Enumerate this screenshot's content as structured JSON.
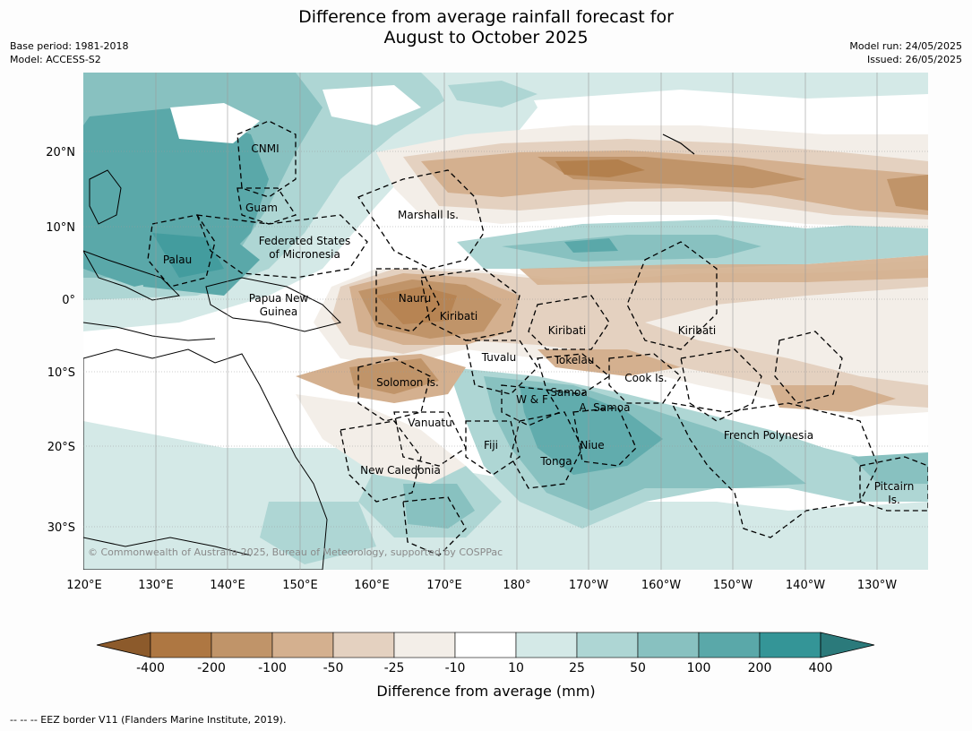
{
  "title_line1": "Difference from average rainfall forecast for",
  "title_line2": "August to October 2025",
  "meta_left": [
    "Base period: 1981-2018",
    "Model: ACCESS-S2"
  ],
  "meta_right": [
    "Model run: 24/05/2025",
    "Issued: 26/05/2025"
  ],
  "lat_labels": [
    "20°N",
    "10°N",
    "0°",
    "10°S",
    "20°S",
    "30°S"
  ],
  "lon_labels": [
    "120°E",
    "130°E",
    "140°E",
    "150°E",
    "160°E",
    "170°E",
    "180°",
    "170°W",
    "160°W",
    "150°W",
    "140°W",
    "130°W"
  ],
  "place_labels": [
    "CNMI",
    "Guam",
    "Marshall Is.",
    "Federated States",
    "of Micronesia",
    "Palau",
    "Papua New",
    "Guinea",
    "Nauru",
    "Kiribati",
    "Kiribati",
    "Kiribati",
    "Tuvalu",
    "Tokelau",
    "Cook Is.",
    "Solomon Is.",
    "W & F",
    "Samoa",
    "A. Samoa",
    "Vanuatu",
    "Fiji",
    "Niue",
    "Tonga",
    "French Polynesia",
    "New Caledonia",
    "Pitcairn",
    "Is."
  ],
  "copyright": "© Commonwealth of Australia 2025, Bureau of Meteorology, supported by COSPPac",
  "colorbar": {
    "ticks": [
      "-400",
      "-200",
      "-100",
      "-50",
      "-25",
      "-10",
      "10",
      "25",
      "50",
      "100",
      "200",
      "400"
    ],
    "colors": [
      "#8c5a2b",
      "#ae7742",
      "#c09469",
      "#d4b08f",
      "#e4d1c0",
      "#f3eee8",
      "#ffffff",
      "#d4e9e7",
      "#aed6d4",
      "#88c1c0",
      "#5aa8a9",
      "#349597",
      "#2b7a7b"
    ],
    "label": "Difference from average (mm)"
  },
  "legend_note": "--  --  -- EEZ border V11 (Flanders Marine Institute, 2019)."
}
